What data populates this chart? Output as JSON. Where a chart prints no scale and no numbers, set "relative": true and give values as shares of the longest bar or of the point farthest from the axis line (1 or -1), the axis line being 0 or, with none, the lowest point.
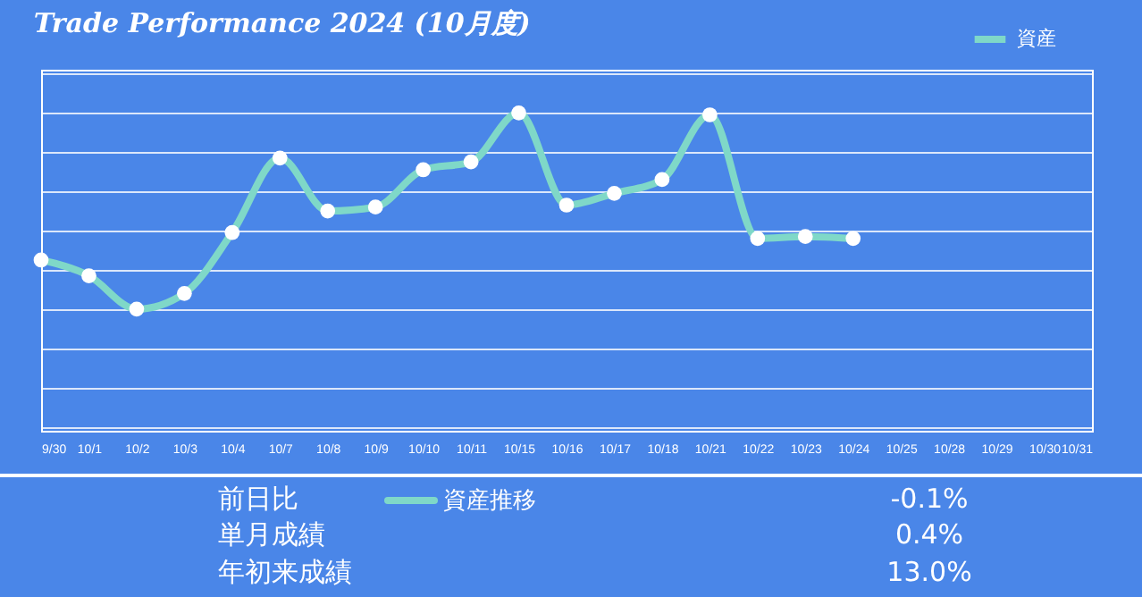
{
  "chart_data": {
    "type": "line",
    "title": "Trade Performance 2024 (10月度)",
    "relative": true,
    "grid": "y",
    "legend": "top right",
    "marker": "circle",
    "line_style": "solid",
    "categories": [
      "9/30",
      "10/1",
      "10/2",
      "10/3",
      "10/4",
      "10/7",
      "10/8",
      "10/9",
      "10/10",
      "10/11",
      "10/15",
      "10/16",
      "10/17",
      "10/18",
      "10/21",
      "10/22",
      "10/23",
      "10/24",
      "10/25",
      "10/28",
      "10/29",
      "10/30",
      "10/31"
    ],
    "series": [
      {
        "name": "資産",
        "color": "#7fd8c8",
        "values": [
          0.25,
          0.17,
          0,
          0.08,
          0.39,
          0.77,
          0.5,
          0.52,
          0.71,
          0.75,
          1,
          0.53,
          0.59,
          0.66,
          0.99,
          0.36,
          0.37,
          0.36,
          null,
          null,
          null,
          null,
          null
        ]
      }
    ],
    "annotations": [
      "前日比",
      "-0.1%",
      "単月成績",
      "0.4%",
      "年初来成績",
      "13.0%",
      "資産推移"
    ]
  }
}
